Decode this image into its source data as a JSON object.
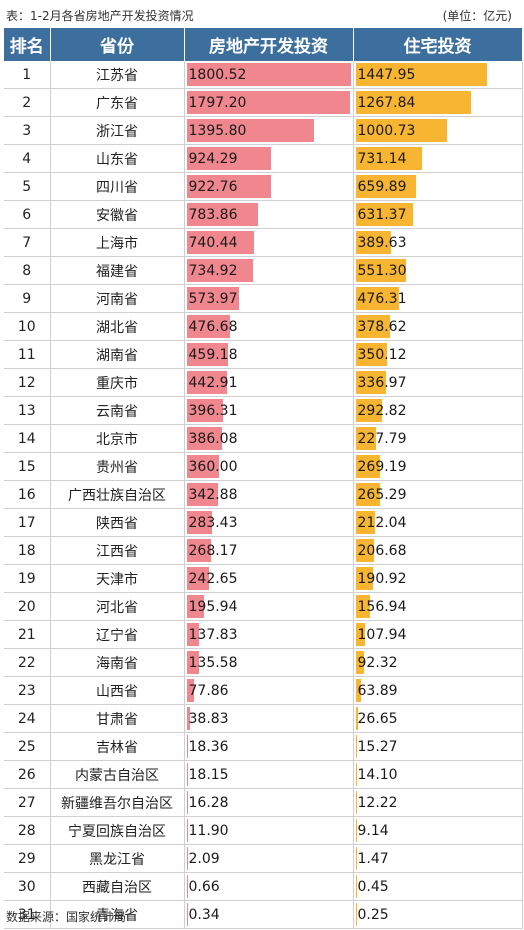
{
  "caption": {
    "title": "表：1-2月各省房地产开发投资情况",
    "unit": "(单位：亿元)"
  },
  "footer": "数据来源：国家统计局",
  "colors": {
    "header_bg": "#3d6f9e",
    "real_estate_bar": "#f0868e",
    "residential_bar": "#f7b531"
  },
  "chart_data": {
    "type": "table",
    "columns": [
      "排名",
      "省份",
      "房地产开发投资",
      "住宅投资"
    ],
    "scale_max": 1800.52,
    "rows": [
      {
        "rank": "1",
        "province": "江苏省",
        "real_estate": 1800.52,
        "residential": 1447.95
      },
      {
        "rank": "2",
        "province": "广东省",
        "real_estate": 1797.2,
        "residential": 1267.84
      },
      {
        "rank": "3",
        "province": "浙江省",
        "real_estate": 1395.8,
        "residential": 1000.73
      },
      {
        "rank": "4",
        "province": "山东省",
        "real_estate": 924.29,
        "residential": 731.14
      },
      {
        "rank": "5",
        "province": "四川省",
        "real_estate": 922.76,
        "residential": 659.89
      },
      {
        "rank": "6",
        "province": "安徽省",
        "real_estate": 783.86,
        "residential": 631.37
      },
      {
        "rank": "7",
        "province": "上海市",
        "real_estate": 740.44,
        "residential": 389.63
      },
      {
        "rank": "8",
        "province": "福建省",
        "real_estate": 734.92,
        "residential": 551.3
      },
      {
        "rank": "9",
        "province": "河南省",
        "real_estate": 573.97,
        "residential": 476.31
      },
      {
        "rank": "10",
        "province": "湖北省",
        "real_estate": 476.68,
        "residential": 378.62
      },
      {
        "rank": "11",
        "province": "湖南省",
        "real_estate": 459.18,
        "residential": 350.12
      },
      {
        "rank": "12",
        "province": "重庆市",
        "real_estate": 442.91,
        "residential": 336.97
      },
      {
        "rank": "13",
        "province": "云南省",
        "real_estate": 396.31,
        "residential": 292.82
      },
      {
        "rank": "14",
        "province": "北京市",
        "real_estate": 386.08,
        "residential": 227.79
      },
      {
        "rank": "15",
        "province": "贵州省",
        "real_estate": 360.0,
        "residential": 269.19
      },
      {
        "rank": "16",
        "province": "广西壮族自治区",
        "real_estate": 342.88,
        "residential": 265.29
      },
      {
        "rank": "17",
        "province": "陕西省",
        "real_estate": 283.43,
        "residential": 212.04
      },
      {
        "rank": "18",
        "province": "江西省",
        "real_estate": 268.17,
        "residential": 206.68
      },
      {
        "rank": "19",
        "province": "天津市",
        "real_estate": 242.65,
        "residential": 190.92
      },
      {
        "rank": "20",
        "province": "河北省",
        "real_estate": 195.94,
        "residential": 156.94
      },
      {
        "rank": "21",
        "province": "辽宁省",
        "real_estate": 137.83,
        "residential": 107.94
      },
      {
        "rank": "22",
        "province": "海南省",
        "real_estate": 135.58,
        "residential": 92.32
      },
      {
        "rank": "23",
        "province": "山西省",
        "real_estate": 77.86,
        "residential": 63.89
      },
      {
        "rank": "24",
        "province": "甘肃省",
        "real_estate": 38.83,
        "residential": 26.65
      },
      {
        "rank": "25",
        "province": "吉林省",
        "real_estate": 18.36,
        "residential": 15.27
      },
      {
        "rank": "26",
        "province": "内蒙古自治区",
        "real_estate": 18.15,
        "residential": 14.1
      },
      {
        "rank": "27",
        "province": "新疆维吾尔自治区",
        "real_estate": 16.28,
        "residential": 12.22
      },
      {
        "rank": "28",
        "province": "宁夏回族自治区",
        "real_estate": 11.9,
        "residential": 9.14
      },
      {
        "rank": "29",
        "province": "黑龙江省",
        "real_estate": 2.09,
        "residential": 1.47
      },
      {
        "rank": "30",
        "province": "西藏自治区",
        "real_estate": 0.66,
        "residential": 0.45
      },
      {
        "rank": "31",
        "province": "青海省",
        "real_estate": 0.34,
        "residential": 0.25
      }
    ]
  }
}
